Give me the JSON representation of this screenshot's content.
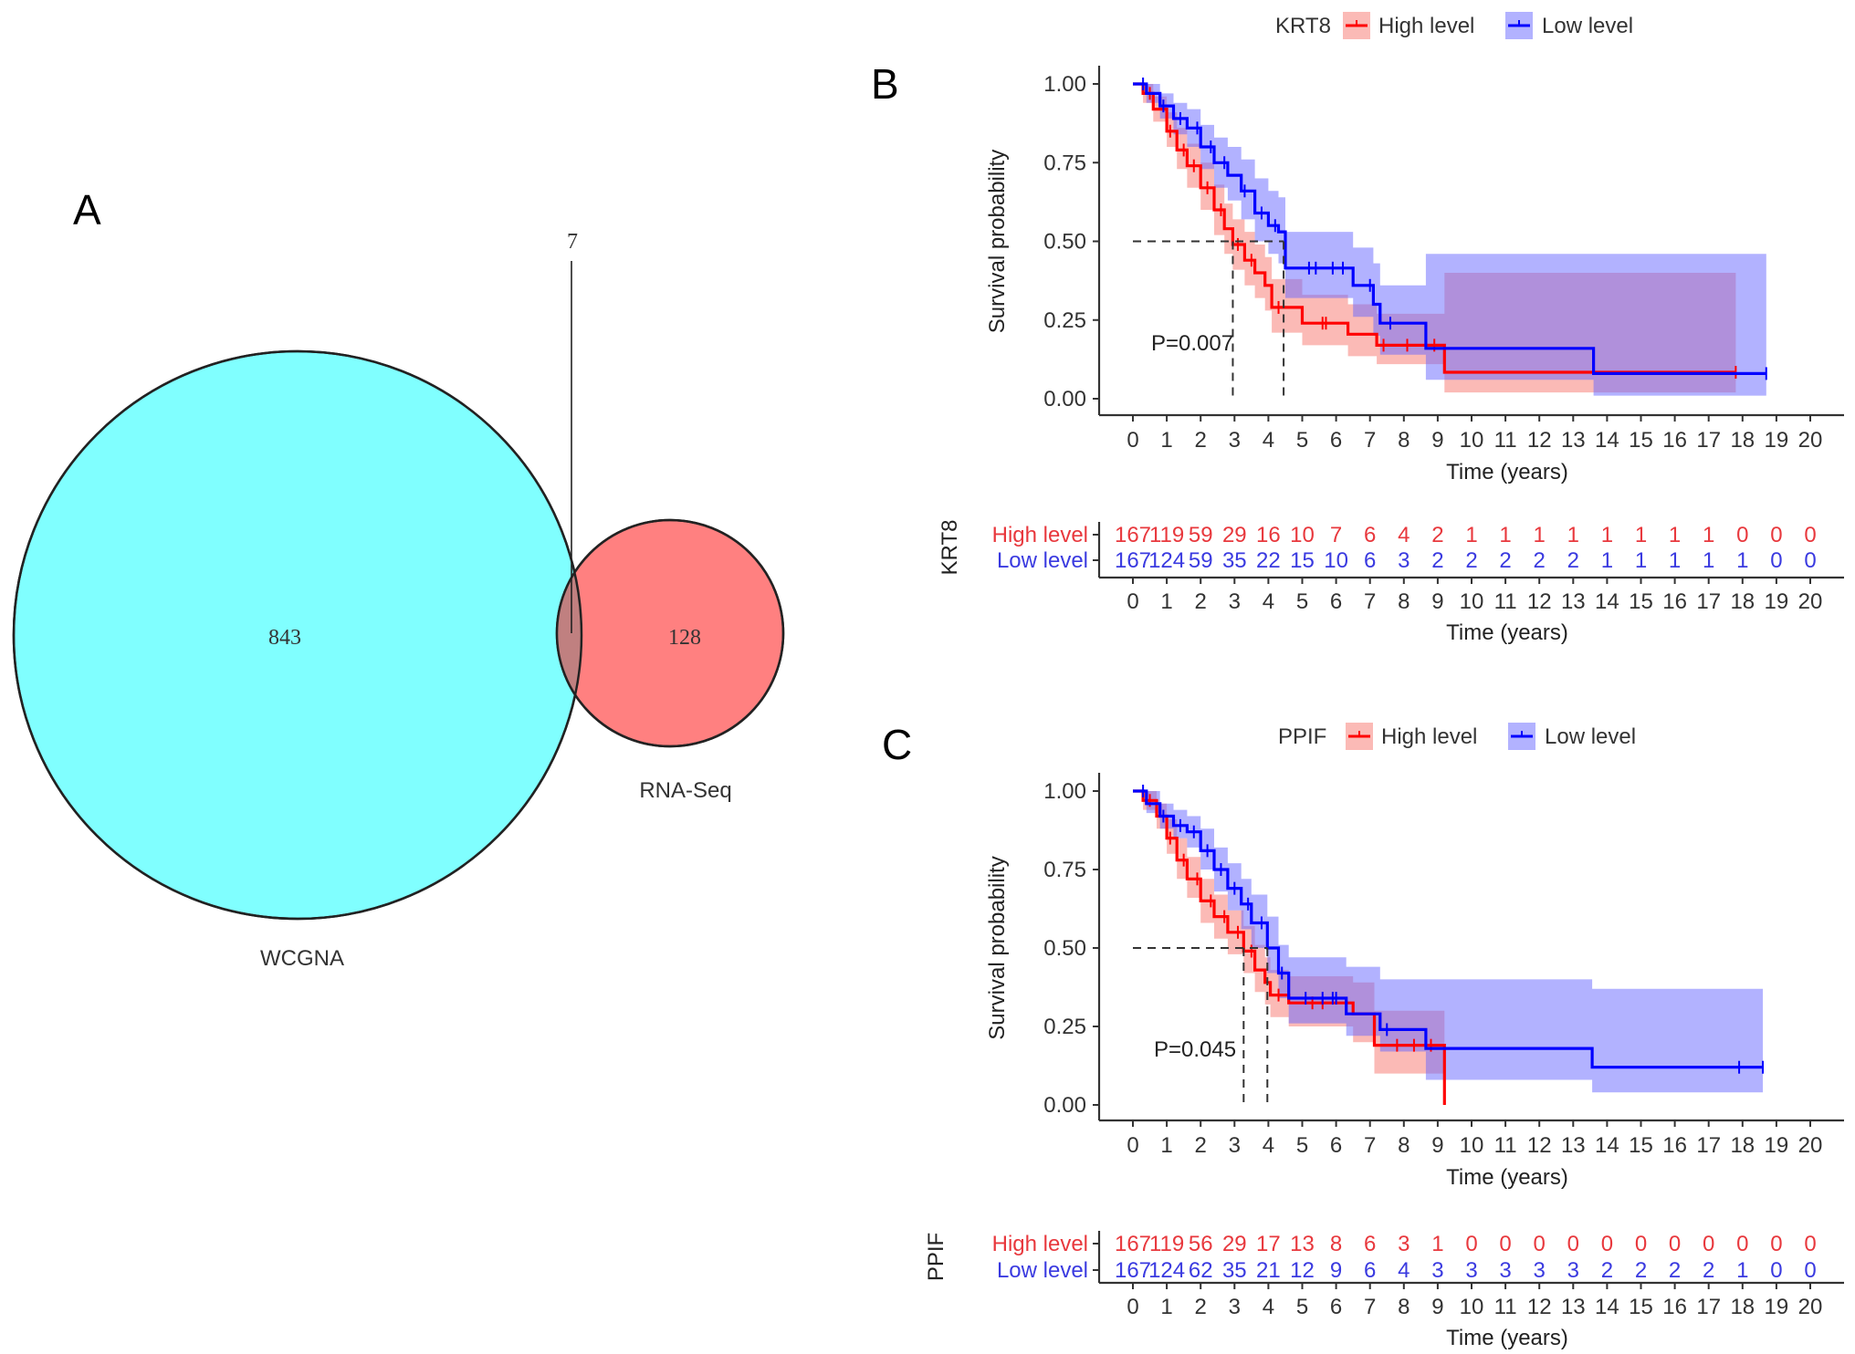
{
  "colors": {
    "high": "#FF0000",
    "low": "#0000FF",
    "high_ci": "#F8766D",
    "low_ci": "#6666FF",
    "wcgna_fill": "#80FFFF",
    "rnaseq_fill": "#FF8080",
    "overlap_fill": "#C08080",
    "risk_high_text": "#E8383D",
    "risk_low_text": "#3A3AE0"
  },
  "panel_a": {
    "letter": "A",
    "chart_data": {
      "type": "venn",
      "sets": [
        {
          "name": "WCGNA",
          "only": 843
        },
        {
          "name": "RNA-Seq",
          "only": 128
        }
      ],
      "intersection": 7
    },
    "labels": {
      "wcgna": "WCGNA",
      "rnaseq": "RNA-Seq",
      "wcgna_count": "843",
      "rnaseq_count": "128",
      "intersection_count": "7"
    }
  },
  "panel_b": {
    "letter": "B",
    "chart_data": {
      "type": "line",
      "subtype": "kaplan-meier",
      "gene": "KRT8",
      "legend": {
        "title": "KRT8",
        "entries": [
          "High level",
          "Low level"
        ],
        "placement": "top"
      },
      "ylabel": "Survival probability",
      "xlabel": "Time (years)",
      "xlim": [
        0,
        20
      ],
      "ylim": [
        0,
        1
      ],
      "xticks": [
        "0",
        "1",
        "2",
        "3",
        "4",
        "5",
        "6",
        "7",
        "8",
        "9",
        "10",
        "11",
        "12",
        "13",
        "14",
        "15",
        "16",
        "17",
        "18",
        "19",
        "20"
      ],
      "yticks": [
        "0.00",
        "0.25",
        "0.50",
        "0.75",
        "1.00"
      ],
      "p_value": "P=0.007",
      "medians": {
        "high": 2.95,
        "low": 4.45
      },
      "series": [
        {
          "name": "High level",
          "steps": [
            [
              0,
              1.0
            ],
            [
              0.3,
              0.97
            ],
            [
              0.6,
              0.92
            ],
            [
              1.0,
              0.85
            ],
            [
              1.3,
              0.79
            ],
            [
              1.6,
              0.74
            ],
            [
              2.0,
              0.67
            ],
            [
              2.4,
              0.6
            ],
            [
              2.7,
              0.54
            ],
            [
              2.95,
              0.49
            ],
            [
              3.3,
              0.44
            ],
            [
              3.6,
              0.4
            ],
            [
              3.9,
              0.36
            ],
            [
              4.1,
              0.29
            ],
            [
              5.0,
              0.24
            ],
            [
              6.35,
              0.205
            ],
            [
              7.2,
              0.17
            ],
            [
              9.2,
              0.084
            ]
          ],
          "lower": [
            1.0,
            0.94,
            0.88,
            0.8,
            0.73,
            0.67,
            0.6,
            0.52,
            0.46,
            0.41,
            0.36,
            0.32,
            0.28,
            0.21,
            0.17,
            0.135,
            0.11,
            0.02
          ],
          "upper": [
            1.0,
            1.0,
            0.96,
            0.91,
            0.86,
            0.81,
            0.75,
            0.68,
            0.62,
            0.57,
            0.53,
            0.49,
            0.45,
            0.38,
            0.33,
            0.3,
            0.27,
            0.4
          ],
          "end": 17.8,
          "censor": [
            0.5,
            1.1,
            1.5,
            1.8,
            2.2,
            2.6,
            3.1,
            3.5,
            4.3,
            5.6,
            5.7,
            7.4,
            8.1,
            8.9,
            17.8
          ]
        },
        {
          "name": "Low level",
          "steps": [
            [
              0,
              1.0
            ],
            [
              0.4,
              0.97
            ],
            [
              0.8,
              0.93
            ],
            [
              1.2,
              0.89
            ],
            [
              1.6,
              0.86
            ],
            [
              2.0,
              0.8
            ],
            [
              2.4,
              0.75
            ],
            [
              2.8,
              0.71
            ],
            [
              3.2,
              0.66
            ],
            [
              3.6,
              0.59
            ],
            [
              4.0,
              0.55
            ],
            [
              4.3,
              0.53
            ],
            [
              4.5,
              0.415
            ],
            [
              6.5,
              0.36
            ],
            [
              7.1,
              0.3
            ],
            [
              7.3,
              0.24
            ],
            [
              8.65,
              0.16
            ],
            [
              13.6,
              0.08
            ]
          ],
          "lower": [
            1.0,
            0.94,
            0.89,
            0.84,
            0.8,
            0.73,
            0.67,
            0.63,
            0.57,
            0.5,
            0.46,
            0.43,
            0.32,
            0.26,
            0.2,
            0.14,
            0.06,
            0.01
          ],
          "upper": [
            1.0,
            1.0,
            0.97,
            0.94,
            0.92,
            0.87,
            0.83,
            0.8,
            0.76,
            0.7,
            0.66,
            0.64,
            0.53,
            0.48,
            0.43,
            0.36,
            0.46,
            0.46
          ],
          "end": 18.7,
          "censor": [
            0.3,
            0.9,
            1.4,
            1.9,
            2.3,
            2.7,
            3.3,
            3.8,
            4.2,
            5.2,
            5.4,
            5.9,
            6.2,
            7.0,
            7.6,
            18.7
          ]
        }
      ],
      "risk_table": {
        "title": "KRT8",
        "xlabel": "Time (years)",
        "rows": [
          {
            "label": "High level",
            "values": [
              "167",
              "119",
              "59",
              "29",
              "16",
              "10",
              "7",
              "6",
              "4",
              "2",
              "1",
              "1",
              "1",
              "1",
              "1",
              "1",
              "1",
              "1",
              "0",
              "0",
              "0"
            ]
          },
          {
            "label": "Low level",
            "values": [
              "167",
              "124",
              "59",
              "35",
              "22",
              "15",
              "10",
              "6",
              "3",
              "2",
              "2",
              "2",
              "2",
              "2",
              "1",
              "1",
              "1",
              "1",
              "1",
              "0",
              "0"
            ]
          }
        ]
      }
    }
  },
  "panel_c": {
    "letter": "C",
    "chart_data": {
      "type": "line",
      "subtype": "kaplan-meier",
      "gene": "PPIF",
      "legend": {
        "title": "PPIF",
        "entries": [
          "High level",
          "Low level"
        ],
        "placement": "top"
      },
      "ylabel": "Survival probability",
      "xlabel": "Time (years)",
      "xlim": [
        0,
        20
      ],
      "ylim": [
        0,
        1
      ],
      "xticks": [
        "0",
        "1",
        "2",
        "3",
        "4",
        "5",
        "6",
        "7",
        "8",
        "9",
        "10",
        "11",
        "12",
        "13",
        "14",
        "15",
        "16",
        "17",
        "18",
        "19",
        "20"
      ],
      "yticks": [
        "0.00",
        "0.25",
        "0.50",
        "0.75",
        "1.00"
      ],
      "p_value": "P=0.045",
      "medians": {
        "high": 3.27,
        "low": 3.97
      },
      "series": [
        {
          "name": "High level",
          "steps": [
            [
              0,
              1.0
            ],
            [
              0.3,
              0.97
            ],
            [
              0.7,
              0.92
            ],
            [
              1.0,
              0.85
            ],
            [
              1.3,
              0.78
            ],
            [
              1.6,
              0.72
            ],
            [
              2.0,
              0.65
            ],
            [
              2.4,
              0.6
            ],
            [
              2.8,
              0.55
            ],
            [
              3.27,
              0.49
            ],
            [
              3.6,
              0.43
            ],
            [
              3.9,
              0.39
            ],
            [
              4.06,
              0.35
            ],
            [
              4.6,
              0.325
            ],
            [
              6.5,
              0.29
            ],
            [
              7.13,
              0.19
            ],
            [
              9.2,
              0.0
            ]
          ],
          "lower": [
            1.0,
            0.94,
            0.88,
            0.8,
            0.72,
            0.66,
            0.58,
            0.53,
            0.48,
            0.42,
            0.36,
            0.32,
            0.28,
            0.25,
            0.2,
            0.1,
            0.0
          ],
          "upper": [
            1.0,
            1.0,
            0.96,
            0.91,
            0.85,
            0.79,
            0.72,
            0.67,
            0.62,
            0.57,
            0.51,
            0.47,
            0.43,
            0.41,
            0.39,
            0.3,
            0.0
          ],
          "end": 9.2,
          "censor": [
            0.5,
            1.1,
            1.5,
            1.9,
            2.3,
            2.7,
            3.1,
            3.5,
            4.3,
            5.3,
            5.6,
            7.8,
            8.3,
            8.8
          ]
        },
        {
          "name": "Low level",
          "steps": [
            [
              0,
              1.0
            ],
            [
              0.4,
              0.96
            ],
            [
              0.8,
              0.92
            ],
            [
              1.2,
              0.89
            ],
            [
              1.6,
              0.87
            ],
            [
              2.0,
              0.81
            ],
            [
              2.4,
              0.75
            ],
            [
              2.8,
              0.69
            ],
            [
              3.2,
              0.64
            ],
            [
              3.5,
              0.58
            ],
            [
              3.97,
              0.5
            ],
            [
              4.3,
              0.42
            ],
            [
              4.6,
              0.34
            ],
            [
              6.3,
              0.29
            ],
            [
              7.3,
              0.24
            ],
            [
              8.65,
              0.18
            ],
            [
              13.56,
              0.12
            ]
          ],
          "lower": [
            1.0,
            0.93,
            0.88,
            0.85,
            0.82,
            0.75,
            0.68,
            0.62,
            0.56,
            0.5,
            0.42,
            0.34,
            0.26,
            0.22,
            0.17,
            0.08,
            0.04
          ],
          "upper": [
            1.0,
            1.0,
            0.96,
            0.94,
            0.92,
            0.88,
            0.82,
            0.77,
            0.72,
            0.67,
            0.6,
            0.51,
            0.47,
            0.44,
            0.4,
            0.4,
            0.37
          ],
          "end": 18.6,
          "censor": [
            0.3,
            0.9,
            1.4,
            1.8,
            2.2,
            2.6,
            3.0,
            3.4,
            3.8,
            4.4,
            5.1,
            5.6,
            5.9,
            6.0,
            7.5,
            17.9,
            18.6
          ]
        }
      ],
      "risk_table": {
        "title": "PPIF",
        "xlabel": "Time (years)",
        "rows": [
          {
            "label": "High level",
            "values": [
              "167",
              "119",
              "56",
              "29",
              "17",
              "13",
              "8",
              "6",
              "3",
              "1",
              "0",
              "0",
              "0",
              "0",
              "0",
              "0",
              "0",
              "0",
              "0",
              "0",
              "0"
            ]
          },
          {
            "label": "Low level",
            "values": [
              "167",
              "124",
              "62",
              "35",
              "21",
              "12",
              "9",
              "6",
              "4",
              "3",
              "3",
              "3",
              "3",
              "3",
              "2",
              "2",
              "2",
              "2",
              "1",
              "0",
              "0"
            ]
          }
        ]
      }
    }
  }
}
